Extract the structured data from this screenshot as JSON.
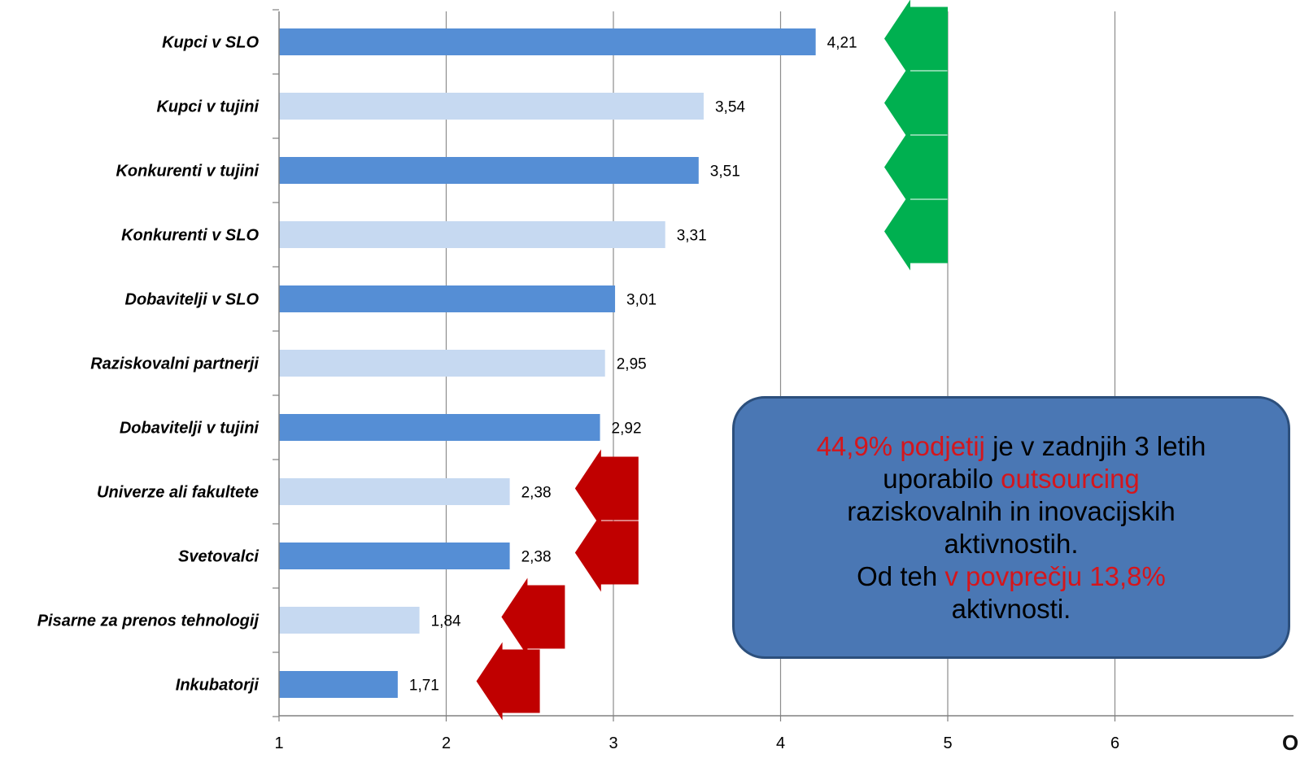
{
  "chart_data": {
    "type": "bar",
    "orientation": "horizontal",
    "categories": [
      "Kupci v SLO",
      "Kupci v tujini",
      "Konkurenti v tujini",
      "Konkurenti v SLO",
      "Dobavitelji v SLO",
      "Raziskovalni partnerji",
      "Dobavitelji v tujini",
      "Univerze ali fakultete",
      "Svetovalci",
      "Pisarne za prenos tehnologij",
      "Inkubatorji"
    ],
    "values": [
      4.21,
      3.54,
      3.51,
      3.31,
      3.01,
      2.95,
      2.92,
      2.38,
      2.38,
      1.84,
      1.71
    ],
    "value_labels": [
      "4,21",
      "3,54",
      "3,51",
      "3,31",
      "3,01",
      "2,95",
      "2,92",
      "2,38",
      "2,38",
      "1,84",
      "1,71"
    ],
    "x_ticks": [
      "1",
      "2",
      "3",
      "4",
      "5",
      "6"
    ],
    "xlim": [
      1,
      7
    ],
    "grid": true,
    "title": "",
    "xlabel": "",
    "ylabel": "",
    "colors": {
      "dark_bar": "#558ed5",
      "light_bar": "#c6d9f1",
      "grid": "#8c8c8c",
      "axis": "#808080"
    },
    "arrows": [
      {
        "category": "Kupci v SLO",
        "direction": "left",
        "color": "#00b050",
        "at_value": 5.0
      },
      {
        "category": "Kupci v tujini",
        "direction": "left",
        "color": "#00b050",
        "at_value": 5.0
      },
      {
        "category": "Konkurenti v tujini",
        "direction": "left",
        "color": "#00b050",
        "at_value": 5.0
      },
      {
        "category": "Konkurenti v SLO",
        "direction": "left",
        "color": "#00b050",
        "at_value": 5.0
      },
      {
        "category": "Univerze ali fakultete",
        "direction": "left",
        "color": "#c00000",
        "at_value": 3.15
      },
      {
        "category": "Svetovalci",
        "direction": "left",
        "color": "#c00000",
        "at_value": 3.15
      },
      {
        "category": "Pisarne za prenos tehnologij",
        "direction": "left",
        "color": "#c00000",
        "at_value": 2.71
      },
      {
        "category": "Inkubatorji",
        "direction": "left",
        "color": "#c00000",
        "at_value": 2.56
      }
    ]
  },
  "callout": {
    "line1_red": "44,9% podjetij",
    "line1_rest": " je v zadnjih 3 letih",
    "line2_black": "uporabilo ",
    "line2_red": "outsourcing",
    "line3": "raziskovalnih in inovacijskih",
    "line4": "aktivnostih.",
    "line5_black": "Od teh ",
    "line5_red": "v povprečju 13,8%",
    "line6": "aktivnosti.",
    "fill_color": "#4a77b4",
    "highlight_color": "#d4161c"
  },
  "corner_glyph": "O"
}
